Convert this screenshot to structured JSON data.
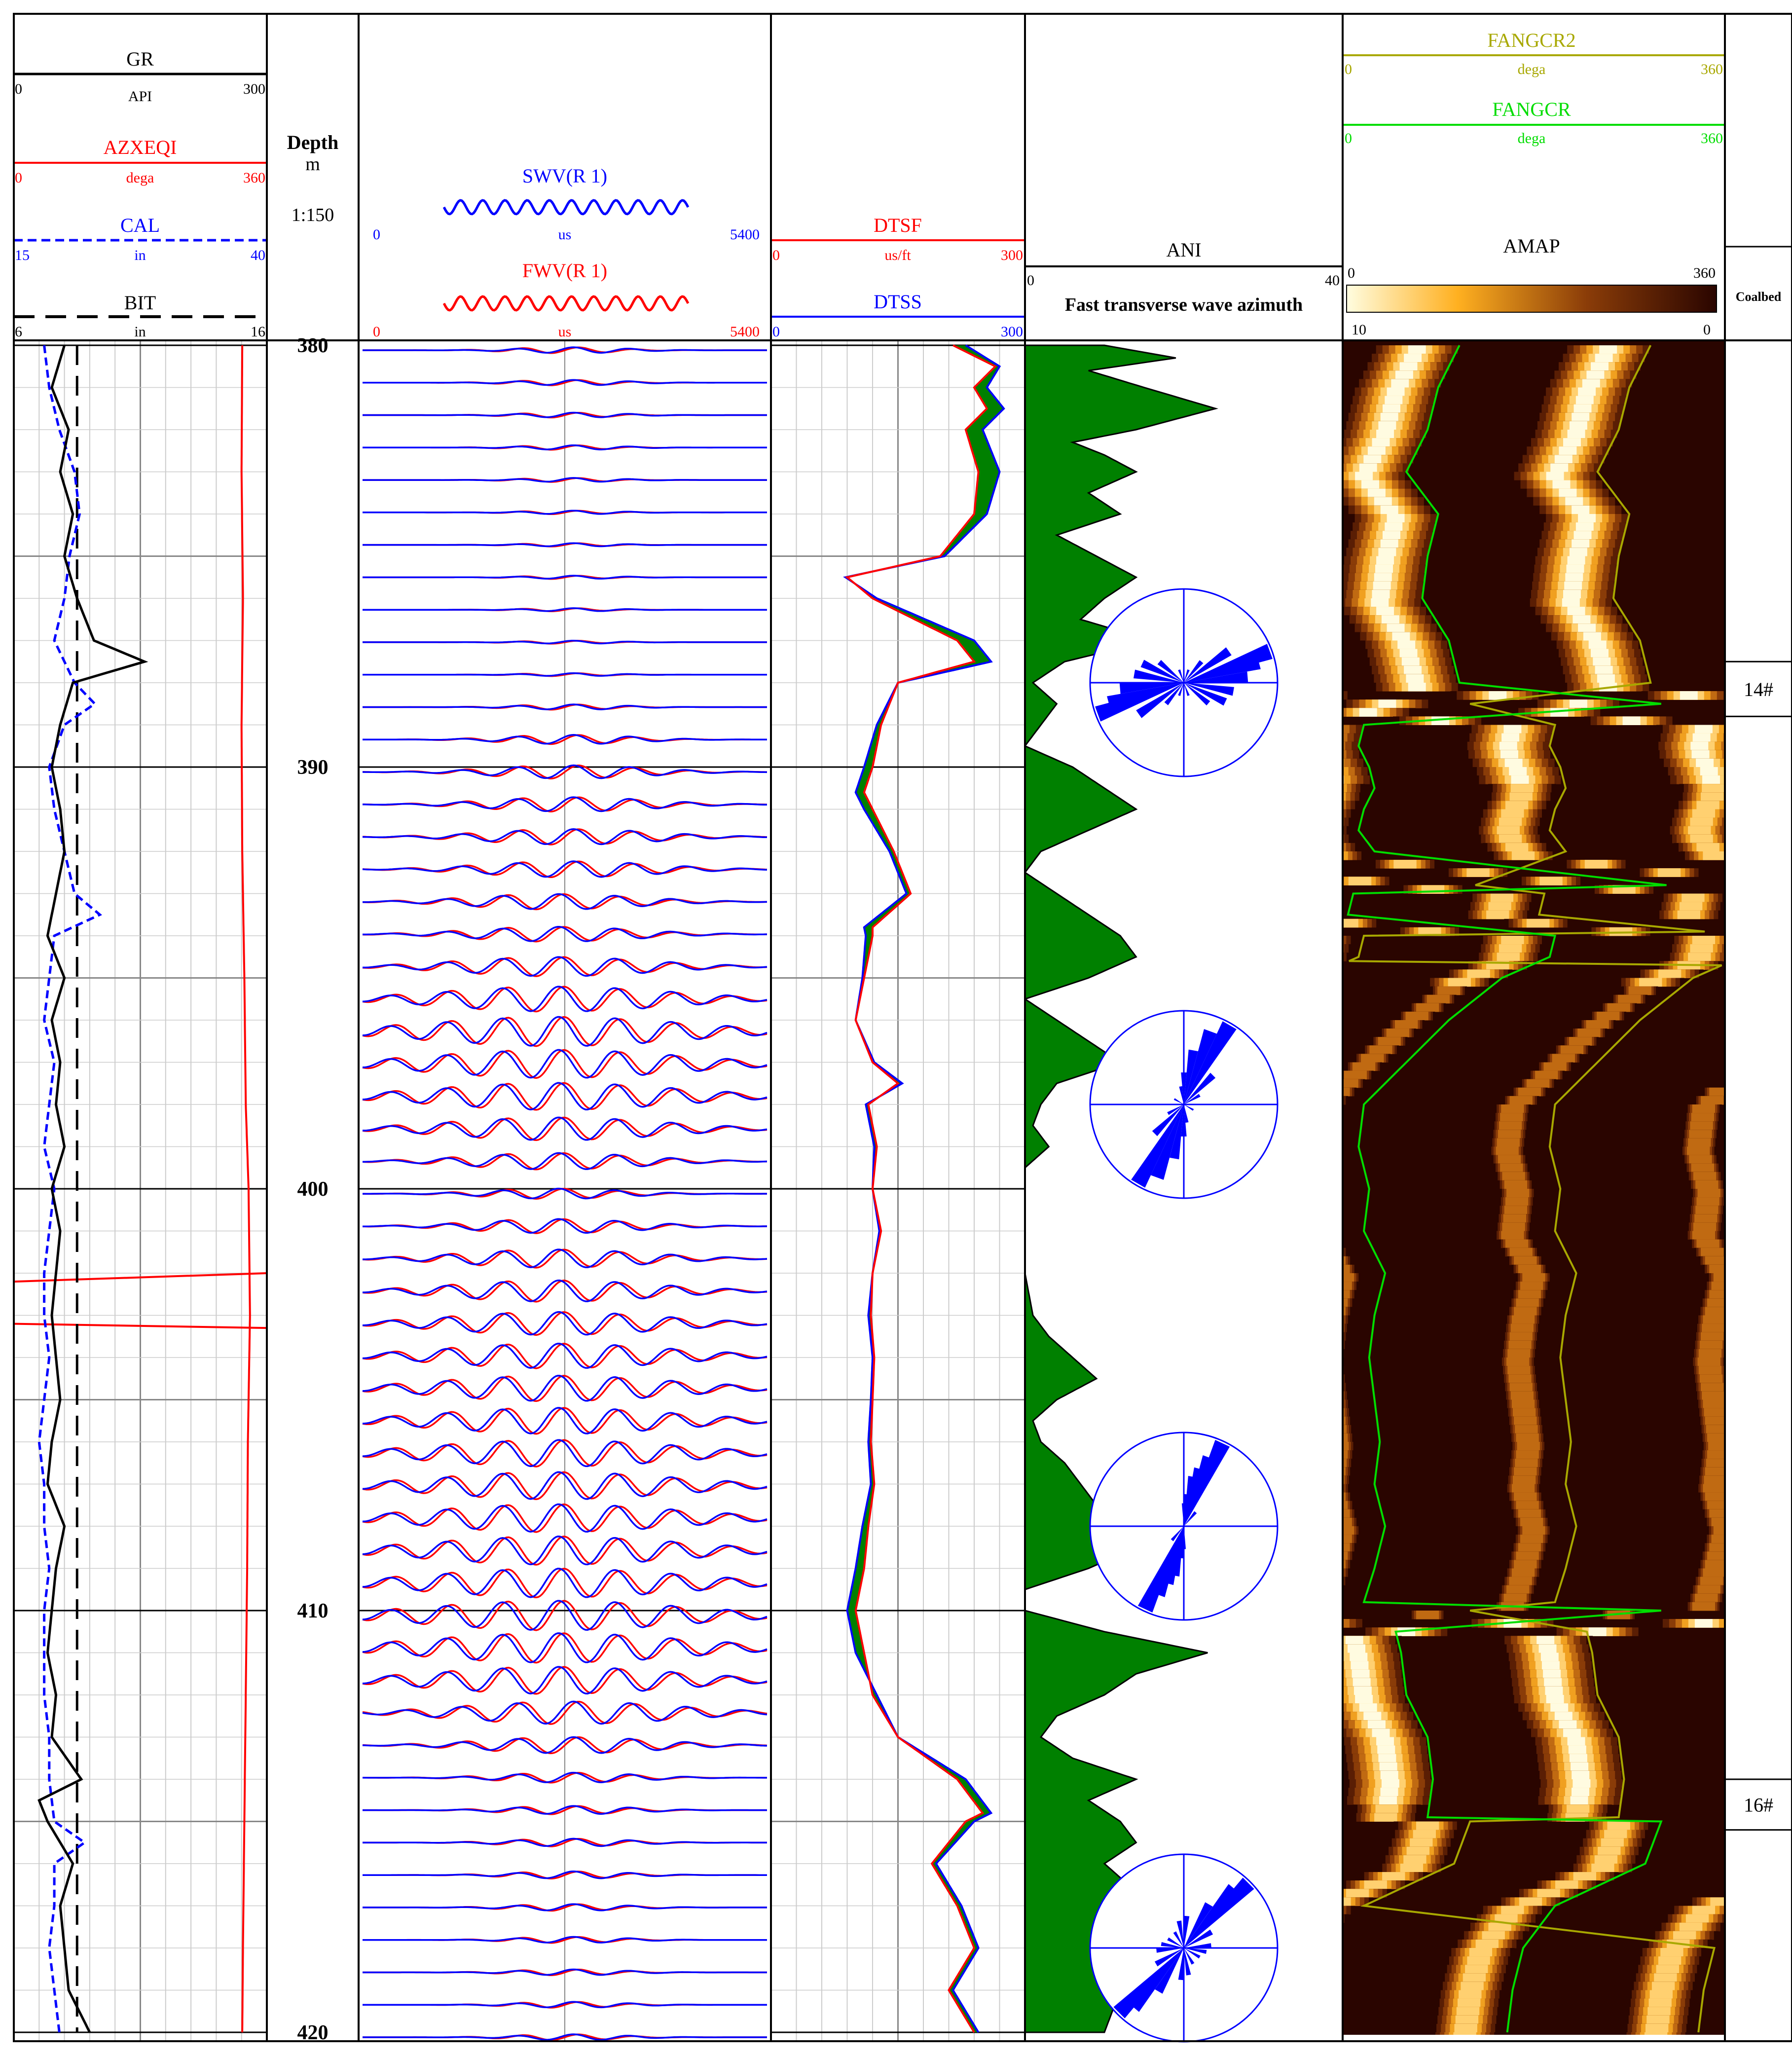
{
  "tracks": {
    "gr": {
      "name": "GR",
      "unit": "API",
      "min": "0",
      "max": "300"
    },
    "azxeqi": {
      "name": "AZXEQI",
      "unit": "dega",
      "min": "0",
      "max": "360"
    },
    "cal": {
      "name": "CAL",
      "unit": "in",
      "min": "15",
      "max": "40"
    },
    "bit": {
      "name": "BIT",
      "unit": "in",
      "min": "6",
      "max": "16"
    },
    "depth": {
      "title": "Depth",
      "unit": "m",
      "scale": "1:150"
    },
    "swv": {
      "name": "SWV(R 1)",
      "unit": "us",
      "min": "0",
      "max": "5400"
    },
    "fwv": {
      "name": "FWV(R 1)",
      "unit": "us",
      "min": "0",
      "max": "5400"
    },
    "dtsf": {
      "name": "DTSF",
      "unit": "us/ft",
      "min": "0",
      "max": "300"
    },
    "dtss": {
      "name": "DTSS",
      "min": "0",
      "max": "300"
    },
    "ani": {
      "name": "ANI",
      "min": "0",
      "max": "40",
      "subtitle": "Fast transverse wave azimuth"
    },
    "fangcr2": {
      "name": "FANGCR2",
      "unit": "dega",
      "min": "0",
      "max": "360"
    },
    "fangcr": {
      "name": "FANGCR",
      "unit": "dega",
      "min": "0",
      "max": "360"
    },
    "amap": {
      "name": "AMAP",
      "min": "0",
      "max": "360",
      "bar_min": "10",
      "bar_max": "0"
    },
    "coalbed": {
      "name": "Coalbed",
      "labels": [
        "14#",
        "16#"
      ]
    }
  },
  "colors": {
    "gr": "#000000",
    "azxeqi": "#ff0000",
    "cal": "#0000ff",
    "bit": "#000000",
    "swv": "#0000ff",
    "fwv": "#ff0000",
    "dtsf": "#ff0000",
    "dtss": "#0000ff",
    "fill": "#008000",
    "fangcr": "#00dd00",
    "fangcr2": "#a8a800",
    "rose": "#0000ff"
  },
  "chart_data": {
    "type": "well-log",
    "depth_range": [
      380,
      420
    ],
    "depth_ticks": [
      "380",
      "390",
      "400",
      "410",
      "420"
    ],
    "gr": {
      "depth": [
        380,
        381,
        382,
        383,
        384,
        385,
        386,
        387,
        387.5,
        388,
        389,
        390,
        391,
        392,
        393,
        394,
        395,
        396,
        397,
        398,
        399,
        400,
        401,
        402,
        403,
        404,
        405,
        406,
        407,
        408,
        409,
        410,
        411,
        412,
        413,
        414,
        414.5,
        415,
        416,
        417,
        418,
        419,
        420
      ],
      "values": [
        60,
        45,
        65,
        55,
        70,
        60,
        75,
        95,
        155,
        70,
        55,
        45,
        55,
        60,
        50,
        40,
        60,
        45,
        55,
        50,
        60,
        45,
        55,
        50,
        45,
        50,
        55,
        45,
        40,
        60,
        50,
        45,
        40,
        50,
        45,
        80,
        30,
        40,
        70,
        55,
        60,
        65,
        90
      ]
    },
    "cal": {
      "depth": [
        380,
        381,
        382,
        383,
        384,
        385,
        386,
        387,
        388,
        388.5,
        389,
        390,
        391,
        392,
        393,
        393.5,
        394,
        395,
        396,
        397,
        398,
        399,
        400,
        401,
        402,
        403,
        404,
        405,
        406,
        407,
        408,
        409,
        410,
        411,
        412,
        413,
        414,
        415,
        415.5,
        416,
        417,
        418,
        419,
        420
      ],
      "values": [
        18,
        18.5,
        19.5,
        21,
        21.5,
        20.5,
        20,
        19,
        21,
        23,
        20,
        18.5,
        19,
        20,
        21,
        23.5,
        19,
        18.5,
        18,
        19,
        18.5,
        18,
        19,
        18.5,
        18,
        18,
        18.5,
        18,
        17.5,
        18,
        18,
        18.5,
        18,
        18,
        18,
        18.5,
        18.5,
        19,
        22,
        19,
        19,
        18.5,
        19,
        19.5
      ]
    },
    "bit": {
      "value": 8.5
    },
    "azxeqi": {
      "depth": [
        380,
        383,
        386,
        389,
        392,
        395,
        398,
        400,
        403,
        406,
        409,
        412,
        415,
        418,
        420
      ],
      "values": [
        325,
        324,
        326,
        324,
        325,
        328,
        330,
        334,
        336,
        333,
        332,
        330,
        328,
        326,
        325
      ]
    },
    "dtsf": {
      "depth": [
        380,
        380.5,
        381,
        381.5,
        382,
        383,
        384,
        385,
        385.5,
        386,
        387,
        387.5,
        388,
        389,
        390,
        390.6,
        391,
        392,
        393,
        393.8,
        394,
        395,
        396,
        397,
        397.5,
        398,
        399,
        400,
        401,
        402,
        403,
        404,
        405,
        406,
        407,
        408,
        409,
        410,
        411,
        412,
        413,
        414,
        414.8,
        415,
        416,
        417,
        418,
        419,
        420
      ],
      "values": [
        215,
        265,
        240,
        255,
        230,
        245,
        240,
        200,
        90,
        120,
        220,
        240,
        150,
        130,
        120,
        110,
        120,
        145,
        165,
        120,
        120,
        110,
        100,
        120,
        150,
        115,
        125,
        120,
        130,
        120,
        118,
        122,
        120,
        118,
        122,
        115,
        110,
        100,
        110,
        120,
        150,
        220,
        250,
        230,
        190,
        220,
        240,
        210,
        240
      ]
    },
    "dtss": {
      "depth": [
        380,
        380.5,
        381,
        381.5,
        382,
        383,
        384,
        385,
        385.5,
        386,
        387,
        387.5,
        388,
        389,
        390,
        390.6,
        391,
        392,
        393,
        393.8,
        394,
        395,
        396,
        397,
        397.5,
        398,
        399,
        400,
        401,
        402,
        403,
        404,
        405,
        406,
        407,
        408,
        409,
        410,
        411,
        412,
        413,
        414,
        414.8,
        415,
        416,
        417,
        418,
        419,
        420
      ],
      "values": [
        230,
        270,
        255,
        275,
        250,
        270,
        255,
        205,
        88,
        125,
        240,
        260,
        150,
        125,
        110,
        100,
        110,
        140,
        160,
        110,
        112,
        108,
        100,
        122,
        155,
        112,
        122,
        120,
        128,
        120,
        115,
        120,
        118,
        115,
        118,
        108,
        100,
        90,
        100,
        125,
        150,
        230,
        260,
        240,
        195,
        225,
        245,
        215,
        245
      ]
    },
    "ani": {
      "depth": [
        380,
        380.3,
        380.6,
        381,
        381.5,
        382,
        382.3,
        382.6,
        383,
        383.5,
        384,
        384.5,
        385,
        385.5,
        386,
        386.5,
        387,
        387.5,
        388,
        388.5,
        389,
        389.5,
        390,
        390.5,
        391,
        391.5,
        392,
        392.5,
        393,
        393.5,
        394,
        394.5,
        395,
        395.5,
        396,
        396.5,
        397,
        397.5,
        398,
        398.5,
        399,
        399.5,
        400,
        401,
        402,
        403,
        403.5,
        404,
        404.5,
        405,
        405.5,
        406,
        406.5,
        407,
        407.5,
        408,
        408.5,
        409,
        409.5,
        410,
        410.5,
        411,
        411.5,
        412,
        412.5,
        413,
        413.5,
        414,
        414.5,
        415,
        415.5,
        416,
        416.5,
        417,
        417.5,
        418,
        418.5,
        419,
        419.5,
        420
      ],
      "values": [
        10,
        19,
        8,
        15,
        24,
        14,
        6,
        10,
        14,
        8,
        12,
        4,
        9,
        14,
        10,
        7,
        16,
        5,
        1,
        4,
        2,
        0,
        6,
        10,
        14,
        8,
        2,
        0,
        4,
        8,
        12,
        14,
        8,
        0,
        4,
        8,
        12,
        4,
        2,
        1,
        3,
        0,
        0,
        0,
        0,
        1,
        3,
        6,
        9,
        4,
        1,
        2,
        5,
        7,
        9,
        12,
        14,
        8,
        0,
        0,
        10,
        23,
        14,
        10,
        4,
        2,
        6,
        14,
        8,
        12,
        14,
        10,
        13,
        11,
        12,
        10,
        14,
        12,
        11,
        10
      ]
    },
    "rose_diagrams": [
      {
        "depth": 388.0,
        "petals": [
          [
            70,
            1.0
          ],
          [
            75,
            0.85
          ],
          [
            55,
            0.6
          ],
          [
            85,
            0.7
          ],
          [
            100,
            0.55
          ],
          [
            115,
            0.5
          ],
          [
            130,
            0.35
          ],
          [
            40,
            0.3
          ],
          [
            20,
            0.15
          ],
          [
            160,
            0.15
          ]
        ]
      },
      {
        "depth": 398.0,
        "petals": [
          [
            30,
            1.0
          ],
          [
            20,
            0.85
          ],
          [
            10,
            0.6
          ],
          [
            45,
            0.45
          ],
          [
            0,
            0.35
          ],
          [
            60,
            0.2
          ],
          [
            170,
            0.2
          ],
          [
            120,
            0.12
          ]
        ]
      },
      {
        "depth": 408.0,
        "petals": [
          [
            25,
            1.0
          ],
          [
            20,
            0.8
          ],
          [
            10,
            0.55
          ],
          [
            15,
            0.65
          ],
          [
            5,
            0.35
          ],
          [
            40,
            0.2
          ],
          [
            0,
            0.25
          ]
        ]
      },
      {
        "depth": 418.0,
        "petals": [
          [
            45,
            1.0
          ],
          [
            40,
            0.85
          ],
          [
            30,
            0.55
          ],
          [
            60,
            0.35
          ],
          [
            5,
            0.35
          ],
          [
            85,
            0.3
          ],
          [
            120,
            0.2
          ],
          [
            150,
            0.2
          ],
          [
            170,
            0.3
          ],
          [
            100,
            0.25
          ]
        ]
      }
    ],
    "fangcr": {
      "depth": [
        380,
        381,
        382,
        383,
        384,
        385,
        386,
        387,
        388,
        388.5,
        389,
        389.5,
        390,
        390.5,
        391,
        391.5,
        392,
        392.8,
        393,
        393.5,
        394,
        394.5,
        395,
        396,
        397,
        398,
        399,
        400,
        401,
        402,
        403,
        404,
        405,
        406,
        407,
        408,
        409,
        409.8,
        410,
        410.5,
        411,
        412,
        413,
        414,
        414.9,
        415,
        416,
        417,
        418,
        419,
        420
      ],
      "values": [
        110,
        90,
        80,
        60,
        90,
        80,
        75,
        100,
        110,
        300,
        20,
        15,
        25,
        30,
        20,
        15,
        30,
        305,
        10,
        5,
        200,
        195,
        150,
        100,
        60,
        20,
        15,
        25,
        20,
        40,
        30,
        25,
        30,
        35,
        30,
        40,
        30,
        20,
        300,
        50,
        55,
        60,
        80,
        85,
        80,
        300,
        285,
        200,
        170,
        160,
        155
      ]
    },
    "fangcr2": {
      "depth": [
        380,
        381,
        382,
        383,
        384,
        385,
        386,
        387,
        388,
        388.5,
        389,
        389.5,
        390,
        390.5,
        391,
        391.5,
        392,
        392.8,
        393,
        393.5,
        394,
        394.5,
        395,
        396,
        397,
        398,
        399,
        400,
        401,
        402,
        403,
        404,
        405,
        406,
        407,
        408,
        409,
        409.8,
        410,
        410.5,
        411,
        412,
        413,
        414,
        414.9,
        415,
        416,
        417,
        418,
        419,
        420
      ],
      "values": [
        290,
        270,
        260,
        240,
        270,
        260,
        255,
        280,
        290,
        120,
        200,
        195,
        205,
        210,
        200,
        195,
        210,
        125,
        190,
        185,
        380,
        375,
        330,
        280,
        240,
        200,
        195,
        205,
        200,
        220,
        210,
        205,
        210,
        215,
        210,
        220,
        210,
        200,
        120,
        230,
        235,
        240,
        260,
        265,
        260,
        120,
        105,
        20,
        350,
        340,
        335
      ]
    },
    "coalbed_intervals": [
      {
        "label": "14#",
        "top": 387.5,
        "bottom": 388.8
      },
      {
        "label": "16#",
        "top": 414.0,
        "bottom": 415.2
      }
    ],
    "waveform_envelope": {
      "depth": [
        380,
        384,
        388,
        390,
        392,
        394,
        396,
        398,
        400,
        402,
        404,
        406,
        408,
        410,
        411,
        412,
        414,
        416,
        418,
        420
      ],
      "amplitude": [
        0.2,
        0.12,
        0.1,
        0.45,
        0.55,
        0.5,
        1.0,
        0.9,
        0.35,
        0.7,
        0.85,
        0.9,
        0.95,
        1.0,
        1.0,
        0.85,
        0.3,
        0.25,
        0.2,
        0.2
      ]
    }
  }
}
